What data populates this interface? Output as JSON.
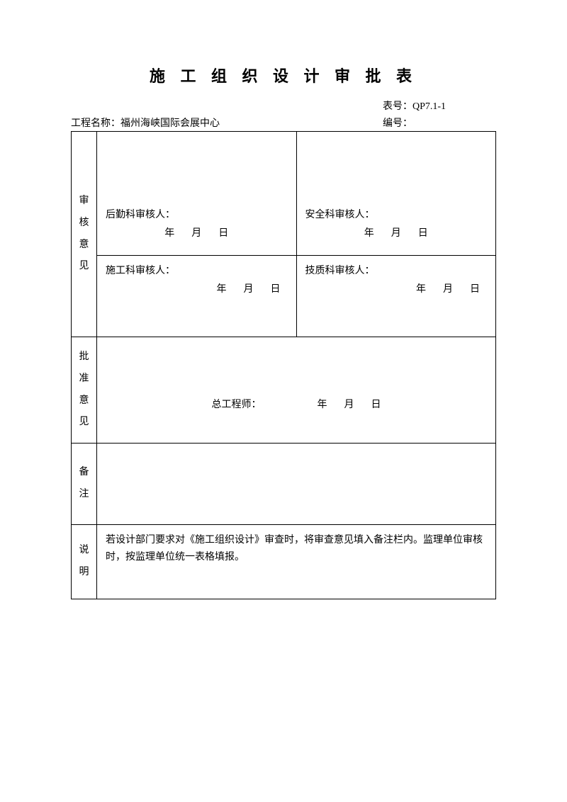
{
  "title": "施 工 组 织 设 计 审 批 表",
  "meta": {
    "form_no_label": "表号：",
    "form_no_value": "QP7.1-1",
    "project_label": "工程名称：",
    "project_value": "福州海峡国际会展中心",
    "serial_label": "编号："
  },
  "sections": {
    "review": {
      "label_c1": "审",
      "label_c2": "核",
      "label_c3": "意",
      "label_c4": "见",
      "logistics": "后勤科审核人：",
      "safety": "安全科审核人：",
      "construction": "施工科审核人：",
      "quality": "技质科审核人：",
      "date_ym1": "年",
      "date_ym2": "月",
      "date_ym3": "日"
    },
    "approve": {
      "label_c1": "批",
      "label_c2": "准",
      "label_c3": "意",
      "label_c4": "见",
      "chief": "总工程师：",
      "date_ym1": "年",
      "date_ym2": "月",
      "date_ym3": "日"
    },
    "remark": {
      "label_c1": "备",
      "label_c2": "注"
    },
    "desc": {
      "label_c1": "说",
      "label_c2": "明",
      "text": "若设计部门要求对《施工组织设计》审查时，将审查意见填入备注栏内。监理单位审核时，按监理单位统一表格填报。"
    }
  },
  "colors": {
    "text": "#000000",
    "border": "#000000",
    "background": "#ffffff"
  },
  "typography": {
    "title_fontsize": 22,
    "body_fontsize": 14,
    "font_family": "SimSun"
  }
}
